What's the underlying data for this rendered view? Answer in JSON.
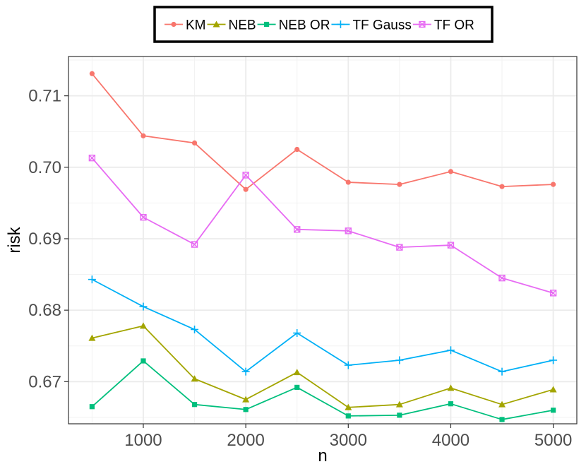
{
  "chart_data": {
    "type": "line",
    "title": "",
    "xlabel": "n",
    "ylabel": "risk",
    "x": [
      500,
      1000,
      1500,
      2000,
      2500,
      3000,
      3500,
      4000,
      4500,
      5000
    ],
    "xlim": [
      270,
      5230
    ],
    "ylim": [
      0.6641,
      0.7155
    ],
    "xticks": [
      1000,
      2000,
      3000,
      4000,
      5000
    ],
    "xtick_labels": [
      "1000",
      "2000",
      "3000",
      "4000",
      "5000"
    ],
    "yticks": [
      0.67,
      0.68,
      0.69,
      0.7,
      0.71
    ],
    "ytick_labels": [
      "0.67",
      "0.68",
      "0.69",
      "0.70",
      "0.71"
    ],
    "grid": true,
    "legend_position": "top",
    "series": [
      {
        "name": "KM",
        "color": "#F8766D",
        "marker": "circle",
        "values": [
          0.7131,
          0.7044,
          0.7034,
          0.6969,
          0.7025,
          0.6979,
          0.6976,
          0.6994,
          0.6973,
          0.6976
        ]
      },
      {
        "name": "NEB",
        "color": "#A3A500",
        "marker": "triangle",
        "values": [
          0.6761,
          0.6778,
          0.6704,
          0.6675,
          0.6713,
          0.6664,
          0.6668,
          0.6691,
          0.6668,
          0.6689
        ]
      },
      {
        "name": "NEB OR",
        "color": "#00BF7D",
        "marker": "square",
        "values": [
          0.6665,
          0.6729,
          0.6668,
          0.6661,
          0.6692,
          0.6652,
          0.6653,
          0.6669,
          0.6647,
          0.666
        ]
      },
      {
        "name": "TF Gauss",
        "color": "#00B0F6",
        "marker": "plus",
        "values": [
          0.6843,
          0.6805,
          0.6773,
          0.6714,
          0.6768,
          0.6723,
          0.673,
          0.6744,
          0.6714,
          0.673
        ]
      },
      {
        "name": "TF OR",
        "color": "#E76BF3",
        "marker": "boxed-x",
        "values": [
          0.7013,
          0.693,
          0.6892,
          0.6989,
          0.6913,
          0.6911,
          0.6888,
          0.6891,
          0.6845,
          0.6824
        ]
      }
    ]
  }
}
